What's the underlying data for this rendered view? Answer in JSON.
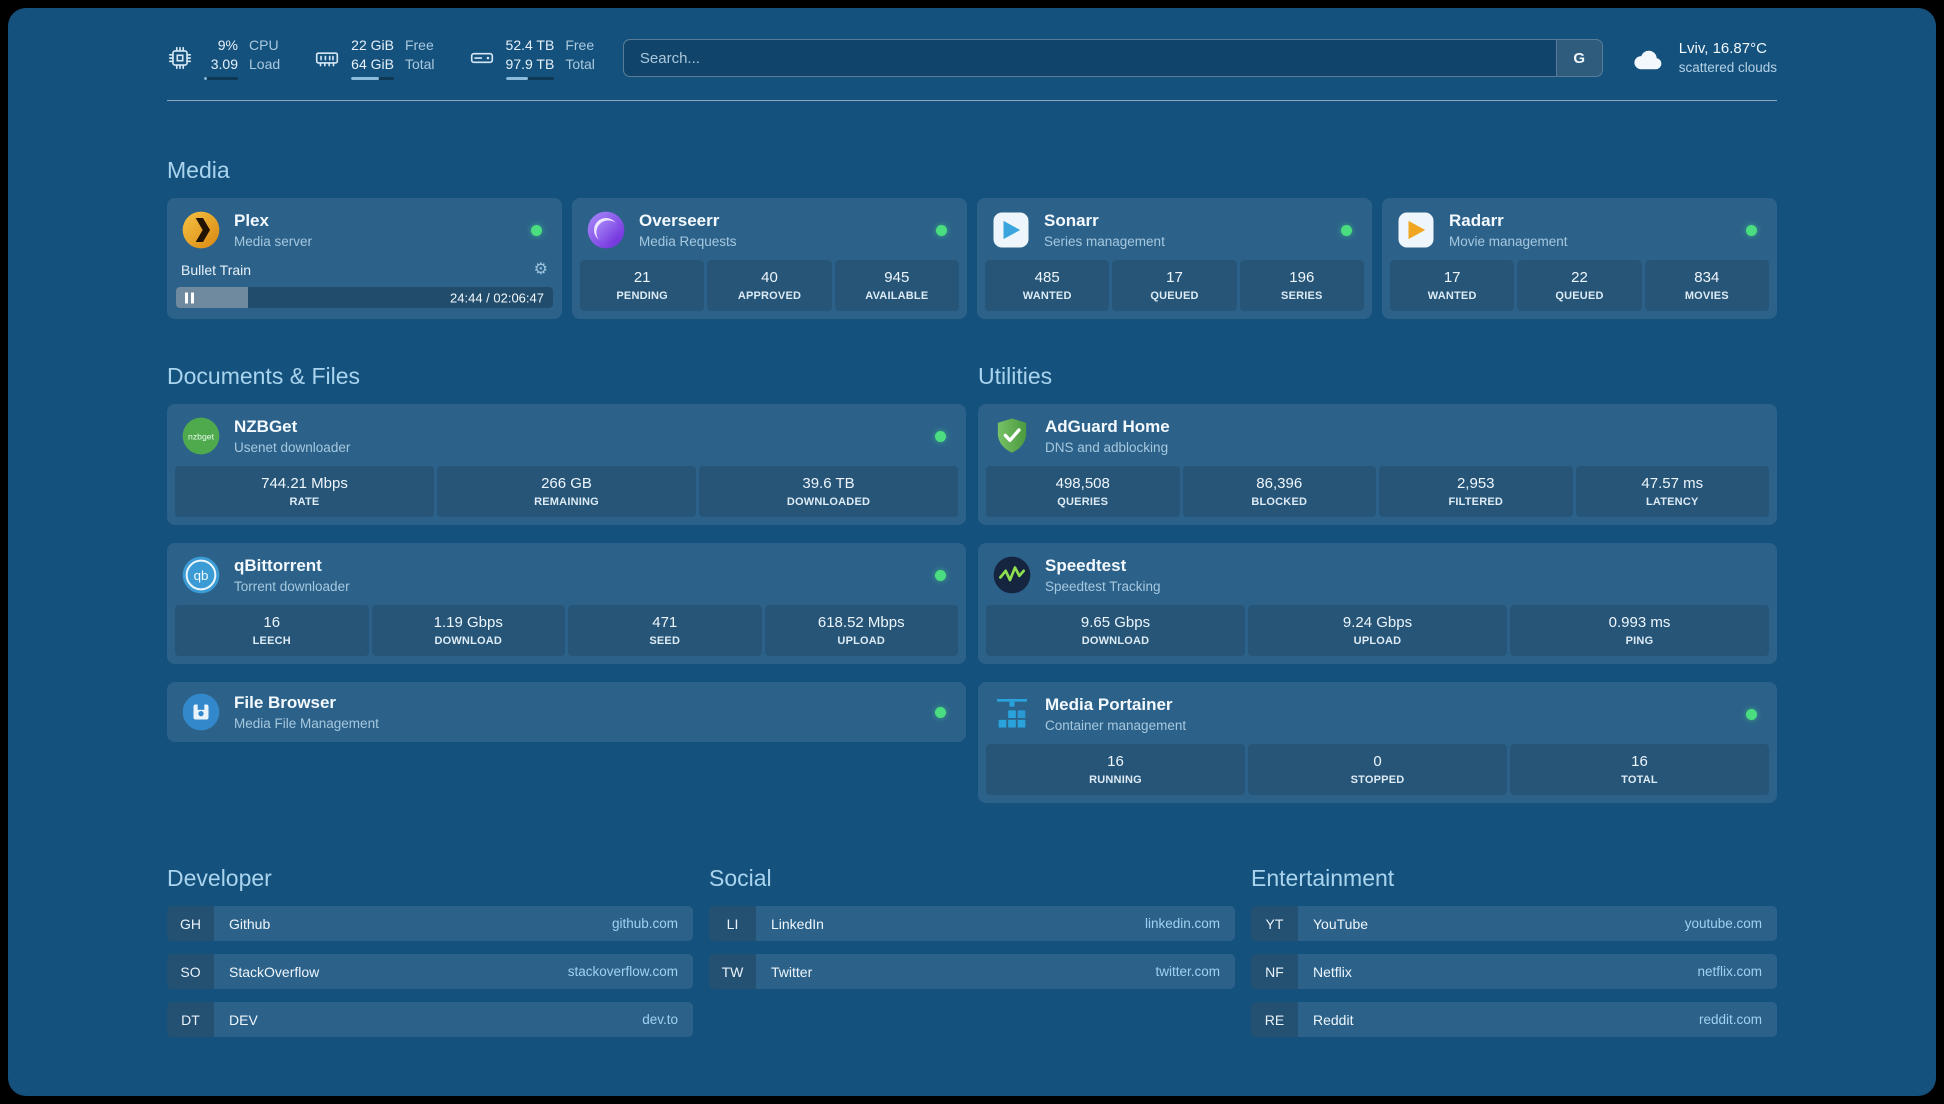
{
  "topbar": {
    "cpu": {
      "value": "9%",
      "value2": "3.09",
      "label": "CPU",
      "label2": "Load",
      "percent": 9
    },
    "memory": {
      "value": "22 GiB",
      "value2": "64 GiB",
      "label": "Free",
      "label2": "Total",
      "percent": 66
    },
    "disk": {
      "value": "52.4 TB",
      "value2": "97.9 TB",
      "label": "Free",
      "label2": "Total",
      "percent": 47
    },
    "search": {
      "placeholder": "Search...",
      "button": "G"
    },
    "weather": {
      "title": "Lviv, 16.87°C",
      "subtitle": "scattered clouds"
    }
  },
  "headings": {
    "media": "Media",
    "documents": "Documents & Files",
    "utilities": "Utilities",
    "developer": "Developer",
    "social": "Social",
    "entertainment": "Entertainment"
  },
  "services": {
    "plex": {
      "name": "Plex",
      "description": "Media server",
      "status": "online",
      "now_playing": "Bullet Train",
      "time": "24:44 / 02:06:47",
      "progress_percent": 19
    },
    "overseerr": {
      "name": "Overseerr",
      "description": "Media Requests",
      "status": "online",
      "stats": [
        {
          "value": "21",
          "label": "PENDING"
        },
        {
          "value": "40",
          "label": "APPROVED"
        },
        {
          "value": "945",
          "label": "AVAILABLE"
        }
      ]
    },
    "sonarr": {
      "name": "Sonarr",
      "description": "Series management",
      "status": "online",
      "stats": [
        {
          "value": "485",
          "label": "WANTED"
        },
        {
          "value": "17",
          "label": "QUEUED"
        },
        {
          "value": "196",
          "label": "SERIES"
        }
      ]
    },
    "radarr": {
      "name": "Radarr",
      "description": "Movie management",
      "status": "online",
      "stats": [
        {
          "value": "17",
          "label": "WANTED"
        },
        {
          "value": "22",
          "label": "QUEUED"
        },
        {
          "value": "834",
          "label": "MOVIES"
        }
      ]
    },
    "nzbget": {
      "name": "NZBGet",
      "description": "Usenet downloader",
      "status": "online",
      "stats": [
        {
          "value": "744.21 Mbps",
          "label": "RATE"
        },
        {
          "value": "266 GB",
          "label": "REMAINING"
        },
        {
          "value": "39.6 TB",
          "label": "DOWNLOADED"
        }
      ]
    },
    "qbittorrent": {
      "name": "qBittorrent",
      "description": "Torrent downloader",
      "status": "online",
      "stats": [
        {
          "value": "16",
          "label": "LEECH"
        },
        {
          "value": "1.19 Gbps",
          "label": "DOWNLOAD"
        },
        {
          "value": "471",
          "label": "SEED"
        },
        {
          "value": "618.52 Mbps",
          "label": "UPLOAD"
        }
      ]
    },
    "filebrowser": {
      "name": "File Browser",
      "description": "Media File Management",
      "status": "online"
    },
    "adguard": {
      "name": "AdGuard Home",
      "description": "DNS and adblocking",
      "stats": [
        {
          "value": "498,508",
          "label": "QUERIES"
        },
        {
          "value": "86,396",
          "label": "BLOCKED"
        },
        {
          "value": "2,953",
          "label": "FILTERED"
        },
        {
          "value": "47.57 ms",
          "label": "LATENCY"
        }
      ]
    },
    "speedtest": {
      "name": "Speedtest",
      "description": "Speedtest Tracking",
      "stats": [
        {
          "value": "9.65 Gbps",
          "label": "DOWNLOAD"
        },
        {
          "value": "9.24 Gbps",
          "label": "UPLOAD"
        },
        {
          "value": "0.993 ms",
          "label": "PING"
        }
      ]
    },
    "portainer": {
      "name": "Media Portainer",
      "description": "Container management",
      "status": "online",
      "stats": [
        {
          "value": "16",
          "label": "RUNNING"
        },
        {
          "value": "0",
          "label": "STOPPED"
        },
        {
          "value": "16",
          "label": "TOTAL"
        }
      ]
    }
  },
  "bookmarks": {
    "developer": [
      {
        "abbr": "GH",
        "name": "Github",
        "url": "github.com"
      },
      {
        "abbr": "SO",
        "name": "StackOverflow",
        "url": "stackoverflow.com"
      },
      {
        "abbr": "DT",
        "name": "DEV",
        "url": "dev.to"
      }
    ],
    "social": [
      {
        "abbr": "LI",
        "name": "LinkedIn",
        "url": "linkedin.com"
      },
      {
        "abbr": "TW",
        "name": "Twitter",
        "url": "twitter.com"
      }
    ],
    "entertainment": [
      {
        "abbr": "YT",
        "name": "YouTube",
        "url": "youtube.com"
      },
      {
        "abbr": "NF",
        "name": "Netflix",
        "url": "netflix.com"
      },
      {
        "abbr": "RE",
        "name": "Reddit",
        "url": "reddit.com"
      }
    ]
  },
  "colors": {
    "background": "#15517d",
    "status_online": "#4ade80",
    "accent_bar": "#8cbcdd",
    "heading": "#a9d4ee"
  }
}
